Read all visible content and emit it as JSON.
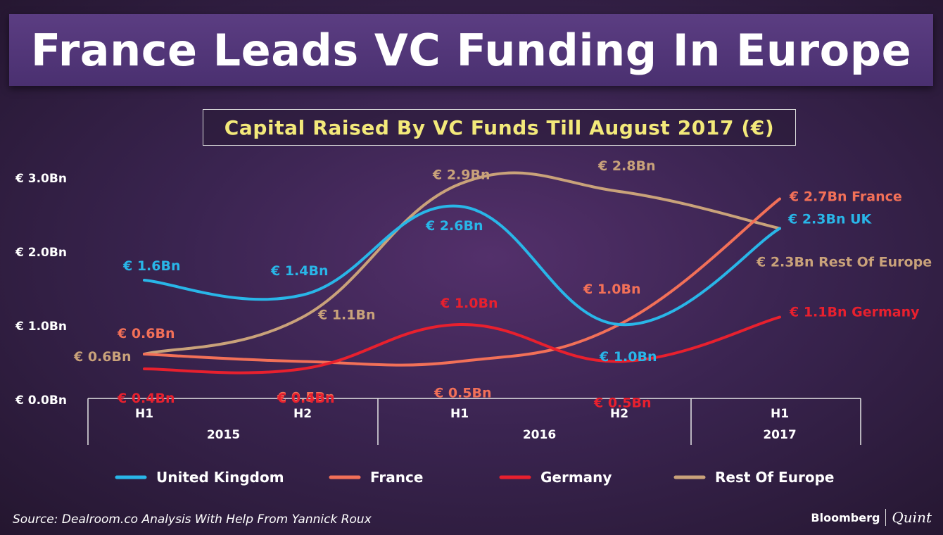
{
  "header": {
    "title": "France Leads VC Funding In Europe",
    "subtitle": "Capital Raised By VC Funds Till August 2017 (€)"
  },
  "footer": {
    "source": "Source: Dealroom.co Analysis With Help From Yannick Roux",
    "brand_primary": "Bloomberg",
    "brand_secondary": "Quint"
  },
  "chart_data": {
    "type": "line",
    "title": "Capital Raised By VC Funds Till August 2017 (€)",
    "ylim": [
      0,
      3.0
    ],
    "yticks": [
      {
        "value": 0,
        "label": "€ 0.0Bn"
      },
      {
        "value": 1,
        "label": "€ 1.0Bn"
      },
      {
        "value": 2,
        "label": "€ 2.0Bn"
      },
      {
        "value": 3,
        "label": "€ 3.0Bn"
      }
    ],
    "periods": [
      "H1",
      "H2",
      "H1",
      "H2",
      "H1"
    ],
    "years": [
      {
        "label": "2015",
        "start": 0,
        "end": 1
      },
      {
        "label": "2016",
        "start": 2,
        "end": 3
      },
      {
        "label": "2017",
        "start": 4,
        "end": 4
      }
    ],
    "series": [
      {
        "name": "United Kingdom",
        "color": "#29b6e8",
        "values": [
          1.6,
          1.4,
          2.6,
          1.0,
          2.3
        ],
        "labels": [
          "€ 1.6Bn",
          "€ 1.4Bn",
          "€ 2.6Bn",
          "€ 1.0Bn",
          "€ 2.3Bn UK"
        ]
      },
      {
        "name": "France",
        "color": "#f27058",
        "values": [
          0.6,
          0.5,
          0.5,
          1.0,
          2.7
        ],
        "labels": [
          "€ 0.6Bn",
          "€ 0.5Bn",
          "€ 0.5Bn",
          "€ 1.0Bn",
          "€ 2.7Bn France"
        ]
      },
      {
        "name": "Germany",
        "color": "#e8202e",
        "values": [
          0.4,
          0.4,
          1.0,
          0.5,
          1.1
        ],
        "labels": [
          "€ 0.4Bn",
          "€ 0.4Bn",
          "€ 1.0Bn",
          "€ 0.5Bn",
          "€ 1.1Bn Germany"
        ]
      },
      {
        "name": "Rest Of Europe",
        "color": "#c9a27a",
        "values": [
          0.6,
          1.1,
          2.9,
          2.8,
          2.3
        ],
        "labels": [
          "€ 0.6Bn",
          "€ 1.1Bn",
          "€ 2.9Bn",
          "€ 2.8Bn",
          "€ 2.3Bn Rest Of Europe"
        ]
      }
    ],
    "legend_position": "bottom"
  }
}
